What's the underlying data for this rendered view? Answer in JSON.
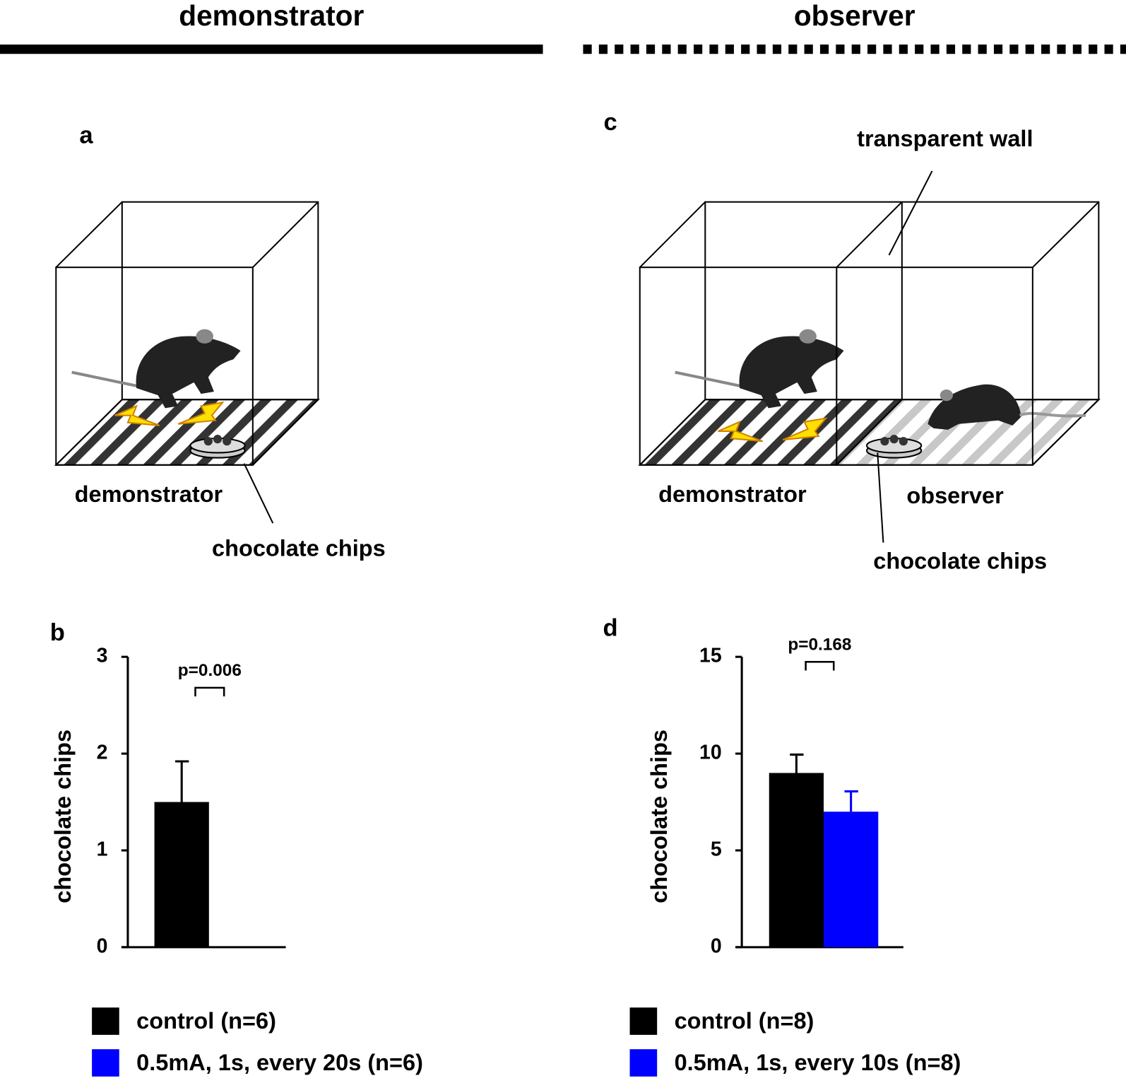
{
  "headers": {
    "left": "demonstrator",
    "right": "observer"
  },
  "panel_labels": [
    "a",
    "b",
    "c",
    "d"
  ],
  "diagram_a": {
    "labels": [
      "demonstrator",
      "chocolate chips"
    ]
  },
  "diagram_c": {
    "labels": [
      "transparent wall",
      "demonstrator",
      "observer",
      "chocolate chips"
    ]
  },
  "chart_data": [
    {
      "type": "bar",
      "y_label": "chocolate chips",
      "annotation": "p=0.006",
      "ylim": [
        0,
        3
      ],
      "yticks": [
        0,
        1,
        2,
        3
      ],
      "series": [
        {
          "name": "control (n=6)",
          "color": "#000000",
          "values": [
            1.5
          ],
          "errors": [
            0.42
          ]
        },
        {
          "name": "0.5mA, 1s, every 20s (n=6)",
          "color": "#0000ff",
          "values": [
            0
          ]
        }
      ]
    },
    {
      "type": "bar",
      "y_label": "chocolate chips",
      "annotation": "p=0.168",
      "ylim": [
        0,
        15
      ],
      "yticks": [
        0,
        5,
        10,
        15
      ],
      "series": [
        {
          "name": "control (n=8)",
          "color": "#000000",
          "values": [
            9.0
          ],
          "errors": [
            0.95
          ]
        },
        {
          "name": "0.5mA, 1s, every 10s (n=8)",
          "color": "#0000ff",
          "values": [
            7.0
          ],
          "errors": [
            1.05
          ]
        }
      ]
    }
  ]
}
